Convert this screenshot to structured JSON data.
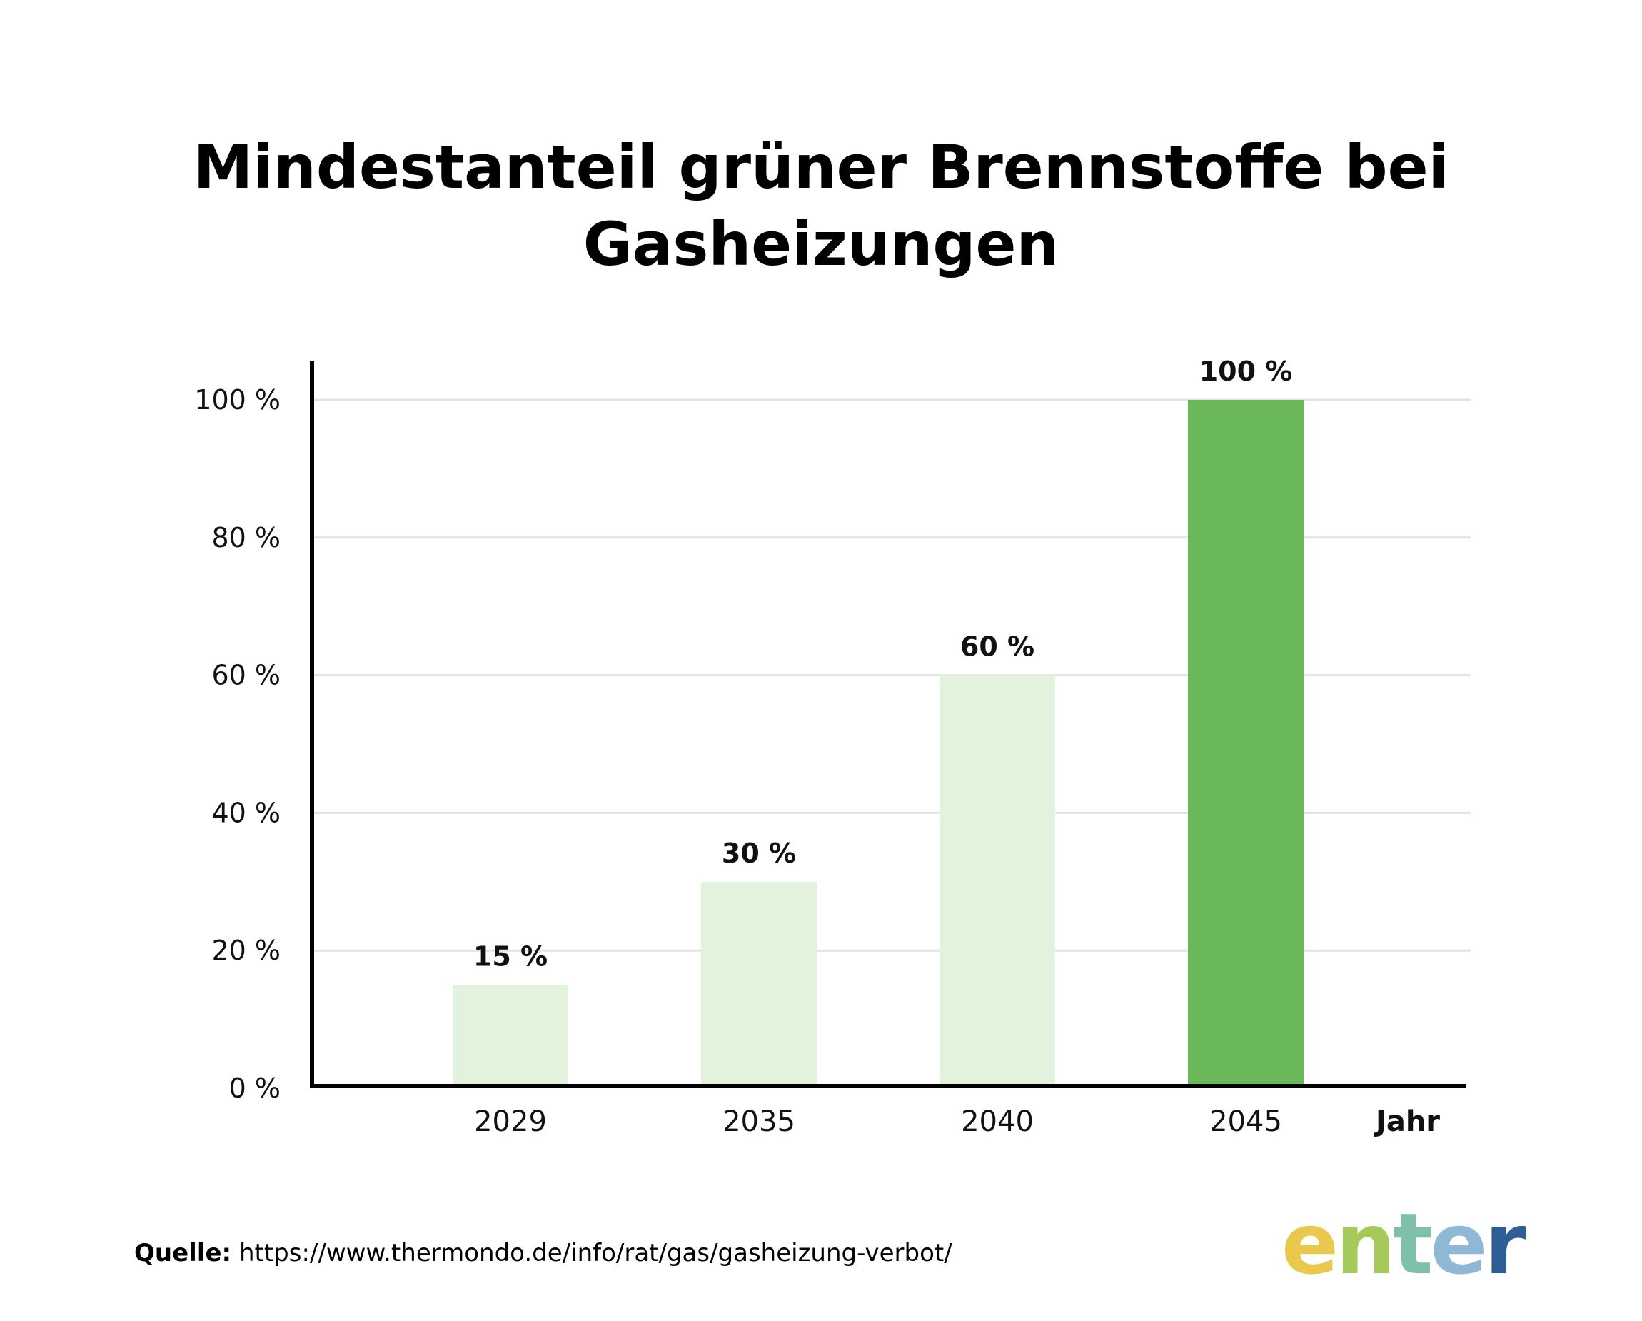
{
  "chart_data": {
    "type": "bar",
    "title": "Mindestanteil grüner Brennstoffe bei\nGasheizungen",
    "xlabel": "Jahr",
    "ylabel": "",
    "categories": [
      "2029",
      "2035",
      "2040",
      "2045"
    ],
    "values": [
      15,
      30,
      60,
      100
    ],
    "value_labels": [
      "15 %",
      "30 %",
      "60 %",
      "100 %"
    ],
    "ylim": [
      0,
      100
    ],
    "yticks": [
      0,
      20,
      40,
      60,
      80,
      100
    ],
    "ytick_labels": [
      "0 %",
      "20 %",
      "40 %",
      "60 %",
      "80 %",
      "100 %"
    ],
    "grid": true,
    "bar_colors": [
      "#e2f2dc",
      "#e2f2dc",
      "#e2f2dc",
      "#6bb85a"
    ]
  },
  "source": {
    "label": "Quelle:",
    "url": "https://www.thermondo.de/info/rat/gas/gasheizung-verbot/"
  },
  "logo": {
    "text": "enter",
    "colors": [
      "#e8c94e",
      "#a5c95a",
      "#7fc1a8",
      "#8fb8d6",
      "#2f5e96"
    ]
  }
}
